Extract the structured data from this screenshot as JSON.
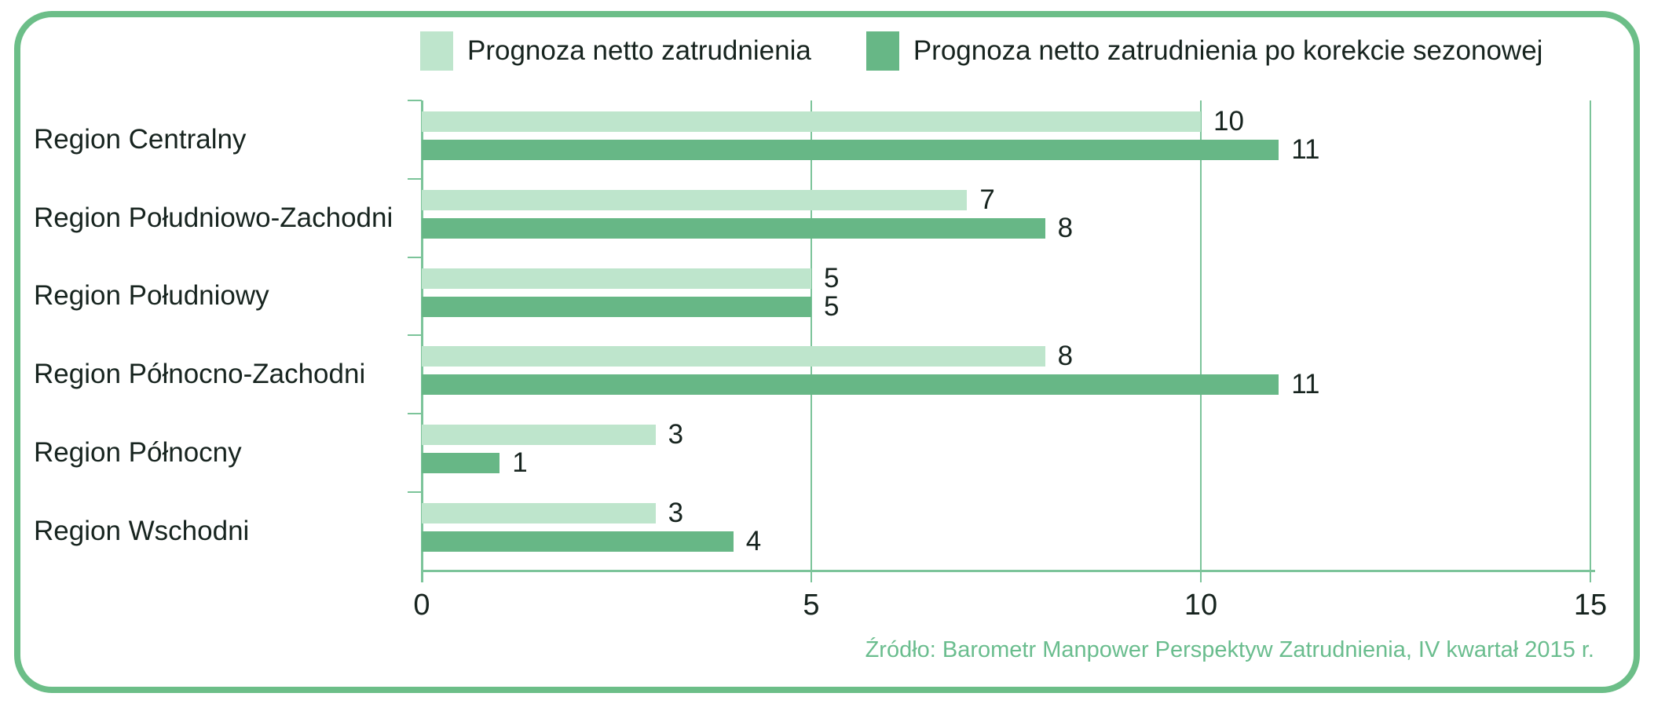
{
  "colors": {
    "frame": "#6cbe88",
    "grid": "#7cc49a",
    "bar_light": "#bee5cc",
    "bar_dark": "#67b786",
    "text": "#17241f",
    "source_text": "#6abd8e"
  },
  "legend": [
    {
      "label": "Prognoza netto zatrudnienia",
      "color": "#bee5cc"
    },
    {
      "label": "Prognoza netto zatrudnienia po korekcie sezonowej",
      "color": "#67b786"
    }
  ],
  "source": "Źródło: Barometr Manpower Perspektyw Zatrudnienia, IV kwartał 2015 r.",
  "chart_data": {
    "type": "bar",
    "orientation": "horizontal",
    "title": "",
    "xlabel": "",
    "ylabel": "",
    "categories": [
      "Region Centralny",
      "Region Południowo-Zachodni",
      "Region Południowy",
      "Region Północno-Zachodni",
      "Region Północny",
      "Region Wschodni"
    ],
    "series": [
      {
        "name": "Prognoza netto zatrudnienia",
        "color": "#bee5cc",
        "values": [
          10,
          7,
          5,
          8,
          3,
          3
        ]
      },
      {
        "name": "Prognoza netto zatrudnienia po korekcie sezonowej",
        "color": "#67b786",
        "values": [
          11,
          8,
          5,
          11,
          1,
          4
        ]
      }
    ],
    "xlim": [
      0,
      15
    ],
    "xticks": [
      0,
      5,
      10,
      15
    ],
    "grid": true,
    "value_labels": true,
    "legend_position": "top"
  }
}
